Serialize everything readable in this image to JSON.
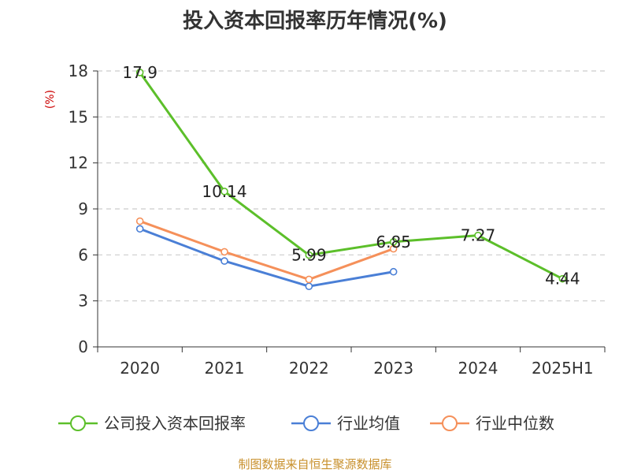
{
  "chart_data": {
    "type": "line",
    "title": "投入资本回报率历年情况(%)",
    "y_unit": "(%)",
    "categories": [
      "2020",
      "2021",
      "2022",
      "2023",
      "2024",
      "2025H1"
    ],
    "ylim": [
      0,
      18
    ],
    "yticks": [
      0,
      3,
      6,
      9,
      12,
      15,
      18
    ],
    "grid": true,
    "legend_position": "bottom",
    "series": [
      {
        "name": "公司投入资本回报率",
        "color": "#5cbf2a",
        "values": [
          17.9,
          10.14,
          5.99,
          6.85,
          7.27,
          4.44
        ],
        "show_labels": true
      },
      {
        "name": "行业均值",
        "color": "#4a7fd6",
        "values": [
          7.7,
          5.6,
          3.95,
          4.9,
          null,
          null
        ],
        "show_labels": false
      },
      {
        "name": "行业中位数",
        "color": "#f5905a",
        "values": [
          8.2,
          6.2,
          4.4,
          6.4,
          null,
          null
        ],
        "show_labels": false
      }
    ]
  },
  "source_note": "制图数据来自恒生聚源数据库"
}
